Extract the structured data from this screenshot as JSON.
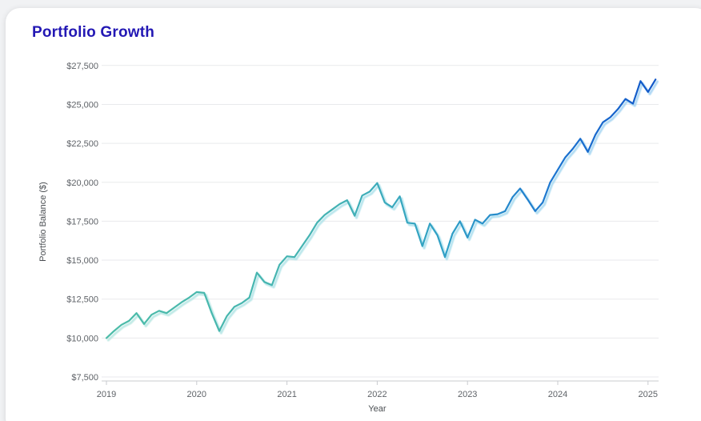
{
  "card": {
    "title": "Portfolio Growth"
  },
  "colors": {
    "background": "#f1f2f4",
    "card": "#ffffff",
    "title": "#2318b4",
    "axis_text": "#5f6368",
    "gridline": "#e9eaec",
    "axis_line": "#c9cbcf"
  },
  "chart_data": {
    "type": "line",
    "title": "Portfolio Growth",
    "xlabel": "Year",
    "ylabel": "Portfolio Balance ($)",
    "grid": true,
    "legend": false,
    "x_tick_labels": [
      "2019",
      "2020",
      "2021",
      "2022",
      "2023",
      "2024",
      "2025"
    ],
    "y_tick_values": [
      7500,
      10000,
      12500,
      15000,
      17500,
      20000,
      22500,
      25000,
      27500
    ],
    "y_tick_labels": [
      "$7,500",
      "$10,000",
      "$12,500",
      "$15,000",
      "$17,500",
      "$20,000",
      "$22,500",
      "$25,000",
      "$27,500"
    ],
    "ylim": [
      7500,
      27500
    ],
    "xlim_years": [
      2019,
      2025.17
    ],
    "x_start_year": 2019,
    "x_step": "monthly",
    "x_end": "2025-02",
    "series": [
      {
        "name": "Portfolio Balance",
        "values": [
          10000,
          10450,
          10850,
          11100,
          11600,
          10900,
          11500,
          11750,
          11600,
          11950,
          12300,
          12600,
          12950,
          12900,
          11600,
          10450,
          11400,
          12000,
          12250,
          12600,
          14200,
          13600,
          13400,
          14700,
          15250,
          15200,
          15900,
          16600,
          17400,
          17900,
          18250,
          18600,
          18850,
          17850,
          19150,
          19400,
          19950,
          18700,
          18400,
          19100,
          17400,
          17350,
          15900,
          17350,
          16600,
          15200,
          16700,
          17500,
          16450,
          17600,
          17350,
          17900,
          17950,
          18150,
          19050,
          19600,
          18900,
          18150,
          18700,
          20000,
          20800,
          21600,
          22150,
          22800,
          21950,
          23050,
          23850,
          24180,
          24700,
          25350,
          25050,
          26500,
          25800,
          26600
        ]
      }
    ],
    "line_gradient": [
      {
        "offset": 0.0,
        "color": "#4cbca8"
      },
      {
        "offset": 0.42,
        "color": "#43b2b4"
      },
      {
        "offset": 0.62,
        "color": "#2f9fc6"
      },
      {
        "offset": 0.82,
        "color": "#1b74d0"
      },
      {
        "offset": 1.0,
        "color": "#1157c8"
      }
    ],
    "glow_gradient": [
      {
        "offset": 0.0,
        "color": "#bce9e2"
      },
      {
        "offset": 0.6,
        "color": "#b0e2ef"
      },
      {
        "offset": 1.0,
        "color": "#a8d4f4"
      }
    ]
  }
}
